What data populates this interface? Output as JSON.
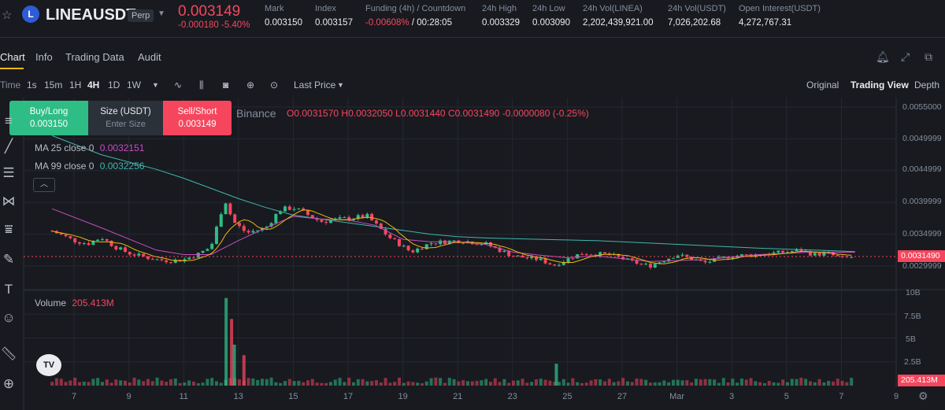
{
  "ticker": {
    "symbol": "LINEAUSDT",
    "contract_type": "Perp",
    "coin_letter": "L",
    "last_price": "0.003149",
    "change": "-0.000180 -5.40%",
    "stats": [
      {
        "label": "Mark",
        "value": "0.003150"
      },
      {
        "label": "Index",
        "value": "0.003157"
      },
      {
        "label": "Funding (4h) / Countdown",
        "value_neg": "-0.00608%",
        "value": " / 00:28:05"
      },
      {
        "label": "24h High",
        "value": "0.003329"
      },
      {
        "label": "24h Low",
        "value": "0.003090"
      },
      {
        "label": "24h Vol(LINEA)",
        "value": "2,202,439,921.00"
      },
      {
        "label": "24h Vol(USDT)",
        "value": "7,026,202.68"
      },
      {
        "label": "Open Interest(USDT)",
        "value": "4,272,767.31"
      }
    ]
  },
  "tabs": [
    "Chart",
    "Info",
    "Trading Data",
    "Audit"
  ],
  "toolbar": {
    "time_label": "Time",
    "intervals": [
      "1s",
      "15m",
      "1H",
      "4H",
      "1D",
      "1W"
    ],
    "active_interval": "4H",
    "price_type": "Last Price",
    "views": [
      "Original",
      "Trading View",
      "Depth"
    ],
    "active_view": "Trading View"
  },
  "order_widget": {
    "buy_label": "Buy/Long",
    "buy_price": "0.003150",
    "size_label": "Size (USDT)",
    "size_placeholder": "Enter Size",
    "sell_label": "Sell/Short",
    "sell_price": "0.003149"
  },
  "chart_header": {
    "exchange": "Binance",
    "ohlc": [
      {
        "k": "O",
        "v": "0.0031570"
      },
      {
        "k": "H",
        "v": "0.0032050"
      },
      {
        "k": "L",
        "v": "0.0031440"
      },
      {
        "k": "C",
        "v": "0.0031490"
      }
    ],
    "change": "-0.0000080 (-0.25%)"
  },
  "indicators": {
    "ma25_label": "MA 25 close 0",
    "ma25_value": "0.0032151",
    "ma99_label": "MA 99 close 0",
    "ma99_value": "0.0032256",
    "volume_label": "Volume",
    "volume_value": "205.413M"
  },
  "price_axis": [
    "0.0055000",
    "0.0049999",
    "0.0044999",
    "0.0039999",
    "0.0034999",
    "0.0029999"
  ],
  "current_price_label": "0.0031490",
  "volume_axis": [
    "10B",
    "7.5B",
    "5B",
    "2.5B"
  ],
  "volume_tag": "205.413M",
  "x_axis": [
    "7",
    "9",
    "11",
    "13",
    "15",
    "17",
    "19",
    "21",
    "23",
    "25",
    "27",
    "Mar",
    "3",
    "5",
    "7",
    "9"
  ],
  "tv_logo": "TV",
  "colors": {
    "up": "#2ebd85",
    "down": "#f6465d",
    "ma25": "#c74dc1",
    "ma99": "#3fb7ae",
    "ma7": "#f0b90b",
    "accent": "#f0b90b"
  },
  "chart_data": {
    "type": "candlestick",
    "title": "LINEAUSDT Perp 4H",
    "xlabel": "",
    "ylabel": "",
    "price_range": [
      0.00285,
      0.0056
    ],
    "volume_range": [
      0,
      10000000000
    ],
    "current_price": 0.003149,
    "ma25_last": 0.0032151,
    "ma99_last": 0.0032256,
    "volume_last": 205413000,
    "close_path": [
      [
        6.2,
        0.00355
      ],
      [
        7,
        0.0034
      ],
      [
        7.5,
        0.00335
      ],
      [
        8,
        0.00345
      ],
      [
        8.5,
        0.0033
      ],
      [
        9,
        0.0032
      ],
      [
        10,
        0.0031
      ],
      [
        10.5,
        0.00308
      ],
      [
        11,
        0.0031
      ],
      [
        11.5,
        0.00318
      ],
      [
        12,
        0.0033
      ],
      [
        12.5,
        0.00405
      ],
      [
        12.8,
        0.0037
      ],
      [
        13.3,
        0.00352
      ],
      [
        14,
        0.0036
      ],
      [
        14.5,
        0.00388
      ],
      [
        15,
        0.00392
      ],
      [
        16,
        0.0037
      ],
      [
        17,
        0.00375
      ],
      [
        17.7,
        0.00378
      ],
      [
        18.5,
        0.00345
      ],
      [
        19.3,
        0.00322
      ],
      [
        20,
        0.00336
      ],
      [
        21,
        0.0034
      ],
      [
        22,
        0.00335
      ],
      [
        23,
        0.00316
      ],
      [
        24,
        0.0031
      ],
      [
        24.5,
        0.00301
      ],
      [
        25.5,
        0.0032
      ],
      [
        26.5,
        0.00318
      ],
      [
        27.5,
        0.00305
      ],
      [
        28,
        0.003
      ],
      [
        29,
        0.00318
      ],
      [
        30,
        0.00305
      ],
      [
        31,
        0.00316
      ],
      [
        32,
        0.00318
      ],
      [
        33,
        0.00322
      ],
      [
        33.5,
        0.00325
      ],
      [
        34,
        0.00318
      ],
      [
        34.5,
        0.0032
      ],
      [
        35,
        0.00312
      ],
      [
        35.5,
        0.003149
      ]
    ],
    "ma25_path": [
      [
        6.2,
        0.0039
      ],
      [
        8,
        0.0036
      ],
      [
        10,
        0.00325
      ],
      [
        11,
        0.00318
      ],
      [
        12,
        0.00318
      ],
      [
        13,
        0.0034
      ],
      [
        14,
        0.0036
      ],
      [
        15,
        0.00378
      ],
      [
        16,
        0.00374
      ],
      [
        17,
        0.00372
      ],
      [
        18,
        0.00364
      ],
      [
        19,
        0.00342
      ],
      [
        20,
        0.00338
      ],
      [
        21,
        0.00338
      ],
      [
        22,
        0.00334
      ],
      [
        23,
        0.00322
      ],
      [
        24,
        0.00317
      ],
      [
        25,
        0.00313
      ],
      [
        26,
        0.00316
      ],
      [
        28,
        0.00307
      ],
      [
        30,
        0.0031
      ],
      [
        32,
        0.00318
      ],
      [
        34,
        0.00322
      ],
      [
        35.5,
        0.0032151
      ]
    ],
    "ma99_path": [
      [
        6.2,
        0.00505
      ],
      [
        8,
        0.00475
      ],
      [
        10,
        0.00452
      ],
      [
        11,
        0.00438
      ],
      [
        12,
        0.00422
      ],
      [
        13,
        0.00406
      ],
      [
        14,
        0.00392
      ],
      [
        15,
        0.0038
      ],
      [
        16,
        0.00374
      ],
      [
        17,
        0.00368
      ],
      [
        18,
        0.00362
      ],
      [
        19,
        0.00356
      ],
      [
        20,
        0.0035
      ],
      [
        21,
        0.00346
      ],
      [
        22,
        0.00344
      ],
      [
        24,
        0.00342
      ],
      [
        26,
        0.0034
      ],
      [
        28,
        0.00336
      ],
      [
        30,
        0.00332
      ],
      [
        32,
        0.00328
      ],
      [
        34,
        0.00325
      ],
      [
        35.5,
        0.0032256
      ]
    ],
    "volume_spikes": [
      {
        "x": 12.55,
        "value": 9200000000
      },
      {
        "x": 12.75,
        "value": 7000000000
      },
      {
        "x": 12.85,
        "value": 4300000000
      },
      {
        "x": 13.2,
        "value": 3200000000
      },
      {
        "x": 24.6,
        "value": 2300000000
      }
    ]
  }
}
